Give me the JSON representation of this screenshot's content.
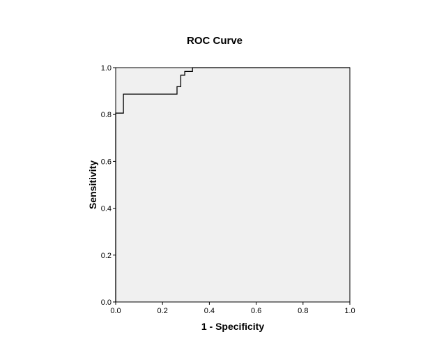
{
  "chart_data": {
    "type": "line",
    "title": "ROC Curve",
    "xlabel": "1 - Specificity",
    "ylabel": "Sensitivity",
    "xlim": [
      0.0,
      1.0
    ],
    "ylim": [
      0.0,
      1.0
    ],
    "x_ticks": [
      "0.0",
      "0.2",
      "0.4",
      "0.6",
      "0.8",
      "1.0"
    ],
    "y_ticks": [
      "0.0",
      "0.2",
      "0.4",
      "0.6",
      "0.8",
      "1.0"
    ],
    "grid": false,
    "legend": false,
    "colors": {
      "plot_background": "#f0f0f0",
      "line": "#000000",
      "frame": "#000000"
    },
    "series": [
      {
        "x": [
          0.0,
          0.0,
          0.033,
          0.033,
          0.262,
          0.262,
          0.278,
          0.278,
          0.295,
          0.295,
          0.328,
          0.328,
          1.0
        ],
        "y": [
          0.0,
          0.806,
          0.806,
          0.887,
          0.887,
          0.919,
          0.919,
          0.968,
          0.968,
          0.984,
          0.984,
          1.0,
          1.0
        ]
      }
    ]
  }
}
